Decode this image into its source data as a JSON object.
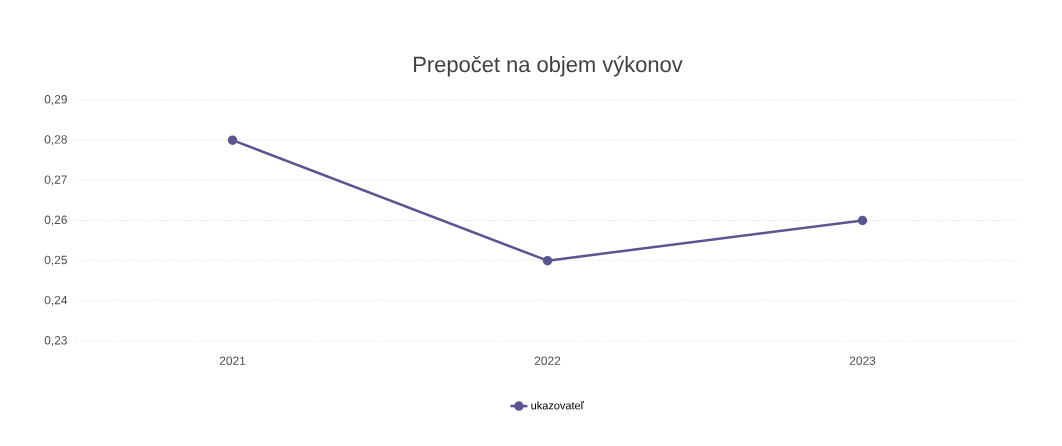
{
  "chart_data": {
    "type": "line",
    "title": "Prepočet na objem výkonov",
    "categories": [
      "2021",
      "2022",
      "2023"
    ],
    "series": [
      {
        "name": "ukazovateľ",
        "color": "#5b5592",
        "values": [
          0.28,
          0.25,
          0.26
        ]
      }
    ],
    "ylim": [
      0.23,
      0.29
    ],
    "yticks": [
      {
        "value": 0.23,
        "label": "0,23"
      },
      {
        "value": 0.24,
        "label": "0,24"
      },
      {
        "value": 0.25,
        "label": "0,25"
      },
      {
        "value": 0.26,
        "label": "0,26"
      },
      {
        "value": 0.27,
        "label": "0,27"
      },
      {
        "value": 0.28,
        "label": "0,28"
      },
      {
        "value": 0.29,
        "label": "0,29"
      }
    ],
    "grid": "y",
    "legend": "bottom",
    "marker": "circle",
    "line_style": "solid"
  }
}
